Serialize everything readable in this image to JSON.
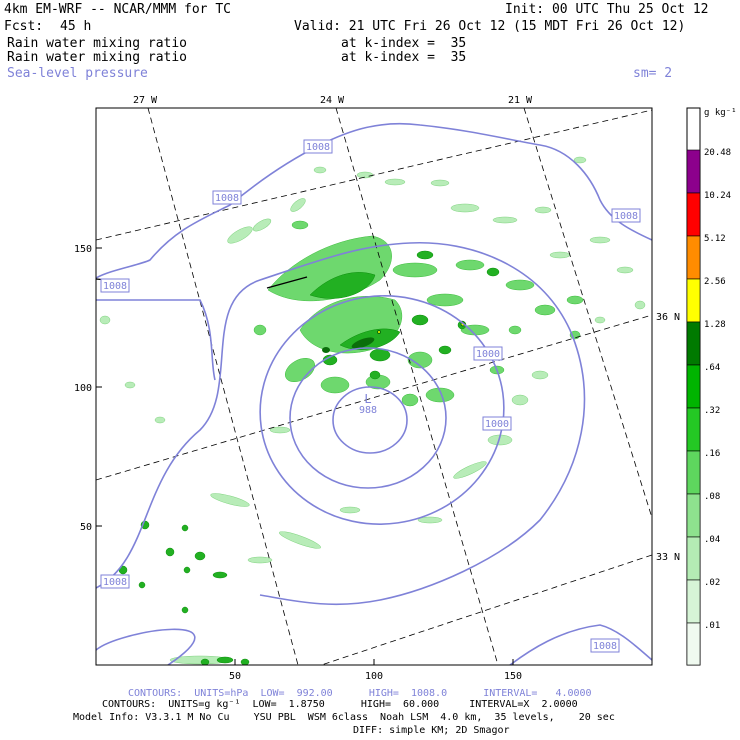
{
  "header": {
    "model_title": "4km EM-WRF -- NCAR/MMM for TC",
    "init": "Init: 00 UTC Thu 25 Oct 12",
    "fcst_label": "Fcst:",
    "fcst_value": "45 h",
    "valid": "Valid: 21 UTC Fri 26 Oct 12 (15 MDT Fri 26 Oct 12)",
    "field1": "Rain water mixing ratio",
    "field1_level": "at k-index =  35",
    "field2": "Rain water mixing ratio",
    "field2_level": "at k-index =  35",
    "field3": "Sea-level pressure",
    "smoothing": "sm= 2"
  },
  "lon_labels": [
    "27 W",
    "24 W",
    "21 W"
  ],
  "lat_labels": [
    "36 N",
    "33 N"
  ],
  "x_ticks": [
    "50",
    "100",
    "150"
  ],
  "y_ticks": [
    "150",
    "100",
    "50"
  ],
  "pressure_labels": [
    "1008",
    "1008",
    "1008",
    "1008",
    "1008",
    "1008",
    "1000",
    "1000"
  ],
  "low_marker": "L",
  "low_value": "988",
  "colorbar": {
    "units": "g kg⁻¹",
    "labels": [
      "20.48",
      "10.24",
      "5.12",
      "2.56",
      "1.28",
      ".64",
      ".32",
      ".16",
      ".08",
      ".04",
      ".02",
      ".01"
    ],
    "colors": {
      "c1": "#f0faf0",
      "c2": "#d6f4d6",
      "c3": "#b4ecb4",
      "c4": "#8ee28e",
      "c5": "#5ed65e",
      "c6": "#24c824",
      "c7": "#00b400",
      "c8": "#007a00",
      "c9": "#ffff00",
      "c10": "#ff8c00",
      "c11": "#ff0000",
      "c12": "#8c008c"
    }
  },
  "footer": {
    "contours1": "CONTOURS:  UNITS=hPa  LOW=  992.00      HIGH=  1008.0      INTERVAL=   4.0000",
    "contours2": "CONTOURS:  UNITS=g kg⁻¹  LOW=  1.8750      HIGH=  60.000     INTERVAL=X  2.0000",
    "model_info": "Model Info: V3.3.1 M No Cu    YSU PBL  WSM 6class  Noah LSM  4.0 km,  35 levels,    20 sec",
    "diff": "DIFF: simple KM; 2D Smagor"
  },
  "style": {
    "contour_color": "#7f82d8"
  }
}
